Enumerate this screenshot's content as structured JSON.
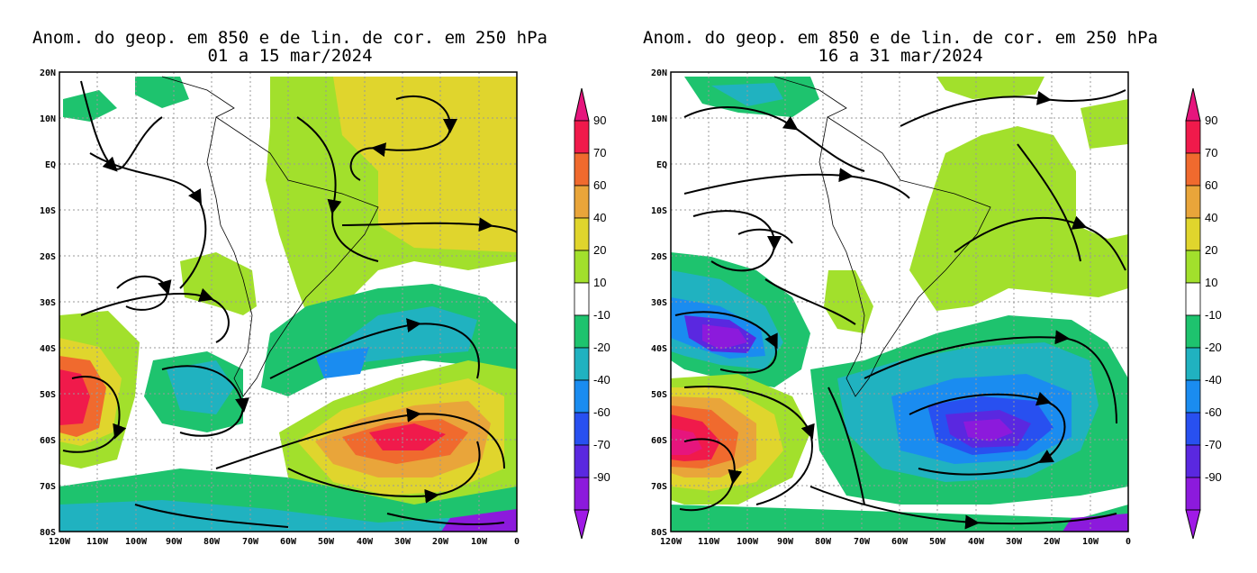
{
  "panels": [
    {
      "title_line1": "Anom. do geop. em 850 e de lin. de cor. em 250 hPa",
      "title_line2": "01 a 15 mar/2024"
    },
    {
      "title_line1": "Anom. do geop. em 850 e de lin. de cor. em 250 hPa",
      "title_line2": "16 a 31 mar/2024"
    }
  ],
  "axes": {
    "lat_labels": [
      "20N",
      "10N",
      "EQ",
      "10S",
      "20S",
      "30S",
      "40S",
      "50S",
      "60S",
      "70S",
      "80S"
    ],
    "lon_labels": [
      "120W",
      "110W",
      "100W",
      "90W",
      "80W",
      "70W",
      "60W",
      "50W",
      "40W",
      "30W",
      "20W",
      "10W",
      "0"
    ]
  },
  "colorbar": {
    "labels": [
      "90",
      "70",
      "60",
      "40",
      "20",
      "10",
      "-10",
      "-20",
      "-40",
      "-60",
      "-70",
      "-90"
    ],
    "colors": [
      "#f01a4b",
      "#f06a2e",
      "#e9a53a",
      "#e0d52d",
      "#a2e02c",
      "#ffffff",
      "#1ec36e",
      "#20b2c0",
      "#1a8cf0",
      "#2850f0",
      "#5a28e0",
      "#8c1adc"
    ],
    "top_color": "#e6157d",
    "bottom_color": "#a01ae6"
  }
}
